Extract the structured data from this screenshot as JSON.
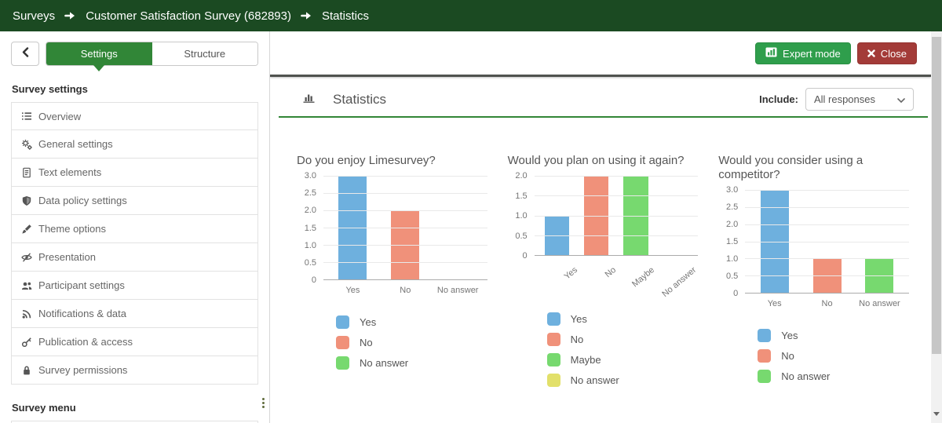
{
  "breadcrumb": {
    "items": [
      "Surveys",
      "Customer Satisfaction Survey (682893)",
      "Statistics"
    ]
  },
  "sidebar": {
    "tabs": [
      {
        "label": "Settings",
        "active": true
      },
      {
        "label": "Structure",
        "active": false
      }
    ],
    "settings_heading": "Survey settings",
    "menu_heading": "Survey menu",
    "items": [
      {
        "label": "Overview",
        "icon": "list-icon"
      },
      {
        "label": "General settings",
        "icon": "gears-icon"
      },
      {
        "label": "Text elements",
        "icon": "file-text-icon"
      },
      {
        "label": "Data policy settings",
        "icon": "shield-icon"
      },
      {
        "label": "Theme options",
        "icon": "paintbrush-icon"
      },
      {
        "label": "Presentation",
        "icon": "eye-slash-icon"
      },
      {
        "label": "Participant settings",
        "icon": "users-icon"
      },
      {
        "label": "Notifications & data",
        "icon": "rss-icon"
      },
      {
        "label": "Publication & access",
        "icon": "key-icon"
      },
      {
        "label": "Survey permissions",
        "icon": "lock-icon"
      }
    ]
  },
  "toolbar": {
    "expert_mode_label": "Expert mode",
    "close_label": "Close"
  },
  "panel": {
    "title": "Statistics",
    "include_label": "Include:",
    "include_value": "All responses"
  },
  "colors": {
    "brand_dark_green": "#1b4a22",
    "accent_green": "#318637",
    "expert_button_green": "#2f9e4c",
    "close_button_red": "#a33b38",
    "bar_blue": "#6eb0de",
    "bar_salmon": "#f0917a",
    "bar_green": "#77d96f",
    "bar_yellow": "#e2e06a"
  },
  "chart_data": [
    {
      "type": "bar",
      "title": "Do you enjoy Limesurvey?",
      "categories": [
        "Yes",
        "No",
        "No answer"
      ],
      "values": [
        3,
        2,
        0
      ],
      "colors": [
        "#6eb0de",
        "#f0917a",
        "#77d96f"
      ],
      "ymax": 3,
      "y_ticks": [
        "3.0",
        "2.5",
        "2.0",
        "1.5",
        "1.0",
        "0.5",
        "0"
      ],
      "ylim": [
        0,
        3
      ],
      "rotated_labels": false,
      "grid": true,
      "legend_position": "bottom"
    },
    {
      "type": "bar",
      "title": "Would you plan on using it again?",
      "categories": [
        "Yes",
        "No",
        "Maybe",
        "No answer"
      ],
      "values": [
        1,
        2,
        2,
        0
      ],
      "colors": [
        "#6eb0de",
        "#f0917a",
        "#77d96f",
        "#e2e06a"
      ],
      "ymax": 2,
      "y_ticks": [
        "2.0",
        "1.5",
        "1.0",
        "0.5",
        "0"
      ],
      "ylim": [
        0,
        2
      ],
      "rotated_labels": true,
      "grid": true,
      "legend_position": "bottom"
    },
    {
      "type": "bar",
      "title": "Would you consider using a competitor?",
      "categories": [
        "Yes",
        "No",
        "No answer"
      ],
      "values": [
        3,
        1,
        1
      ],
      "colors": [
        "#6eb0de",
        "#f0917a",
        "#77d96f"
      ],
      "ymax": 3,
      "y_ticks": [
        "3.0",
        "2.5",
        "2.0",
        "1.5",
        "1.0",
        "0.5",
        "0"
      ],
      "ylim": [
        0,
        3
      ],
      "rotated_labels": false,
      "grid": true,
      "legend_position": "bottom"
    }
  ]
}
